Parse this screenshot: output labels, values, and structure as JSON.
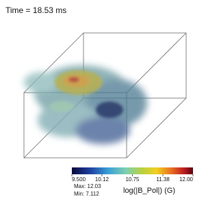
{
  "time_label": "Time = 18.53 ms",
  "colorbar": {
    "title": "log(|B_Pol|) (G)",
    "range": [
      9.5,
      12
    ],
    "ticks": [
      {
        "value": 9.5,
        "label": "9.500"
      },
      {
        "value": 10.12,
        "label": "10.12"
      },
      {
        "value": 10.75,
        "label": "10.75"
      },
      {
        "value": 11.38,
        "label": "11.38"
      },
      {
        "value": 12,
        "label": "12.00"
      }
    ],
    "max_label": "Max: 12.03",
    "min_label": "Min: 7.112"
  }
}
